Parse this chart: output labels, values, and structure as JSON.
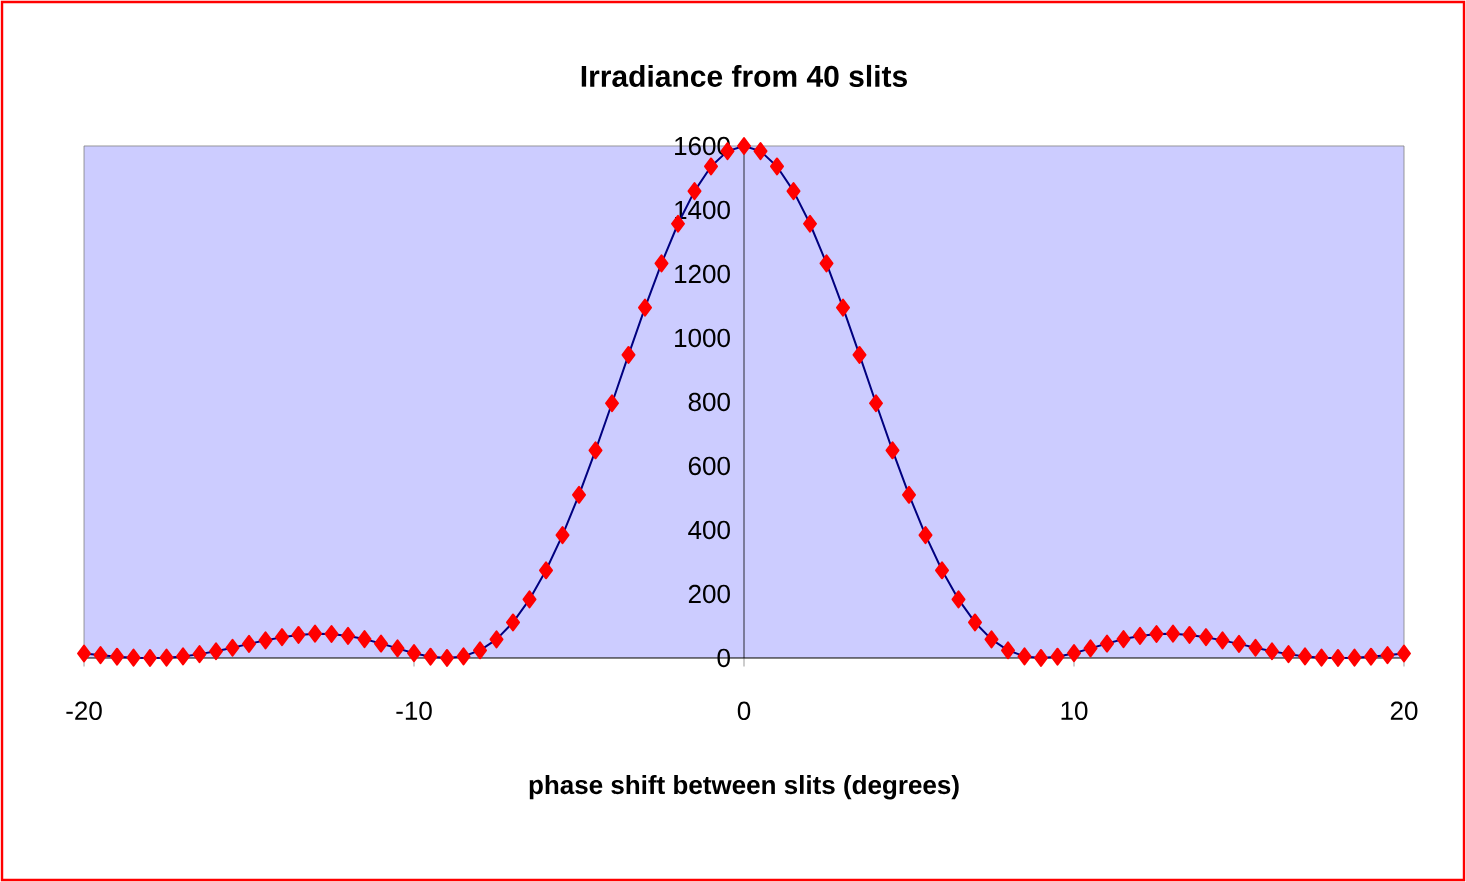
{
  "chart_data": {
    "type": "line",
    "title": "Irradiance from 40 slits",
    "xlabel": "phase shift between slits (degrees)",
    "x": [
      -20,
      -19.5,
      -19,
      -18.5,
      -18,
      -17.5,
      -17,
      -16.5,
      -16,
      -15.5,
      -15,
      -14.5,
      -14,
      -13.5,
      -13,
      -12.5,
      -12,
      -11.5,
      -11,
      -10.5,
      -10,
      -9.5,
      -9,
      -8.5,
      -8,
      -7.5,
      -7,
      -6.5,
      -6,
      -5.5,
      -5,
      -4.5,
      -4,
      -3.5,
      -3,
      -2.5,
      -2,
      -1.5,
      -1,
      -0.5,
      0,
      0.5,
      1,
      1.5,
      2,
      2.5,
      3,
      3.5,
      4,
      4.5,
      5,
      5.5,
      6,
      6.5,
      7,
      7.5,
      8,
      8.5,
      9,
      9.5,
      10,
      10.5,
      11,
      11.5,
      12,
      12.5,
      13,
      13.5,
      14,
      14.5,
      15,
      15.5,
      16,
      16.5,
      17,
      17.5,
      18,
      18.5,
      19,
      19.5,
      20
    ],
    "series": [
      {
        "color": "#ff0000",
        "values": [
          14,
          9,
          4,
          1,
          0,
          1,
          5,
          12,
          21,
          32,
          44,
          55,
          65,
          72,
          76,
          75,
          69,
          59,
          45,
          30,
          15,
          4,
          0,
          5,
          24,
          58,
          111,
          183,
          274,
          384,
          510,
          649,
          796,
          947,
          1095,
          1233,
          1357,
          1459,
          1536,
          1584,
          1600,
          1584,
          1536,
          1459,
          1357,
          1233,
          1095,
          947,
          796,
          649,
          510,
          384,
          274,
          183,
          111,
          58,
          24,
          5,
          0,
          4,
          15,
          30,
          45,
          59,
          69,
          75,
          76,
          72,
          65,
          55,
          44,
          32,
          21,
          12,
          5,
          1,
          0,
          1,
          4,
          9,
          14
        ]
      }
    ],
    "xlim": [
      -20,
      20
    ],
    "xticks": [
      -20,
      -10,
      0,
      10,
      20
    ],
    "ylim": [
      0,
      1600
    ],
    "yticks": [
      0,
      200,
      400,
      600,
      800,
      1000,
      1200,
      1400,
      1600
    ],
    "marker": "diamond",
    "line_style": "solid"
  }
}
